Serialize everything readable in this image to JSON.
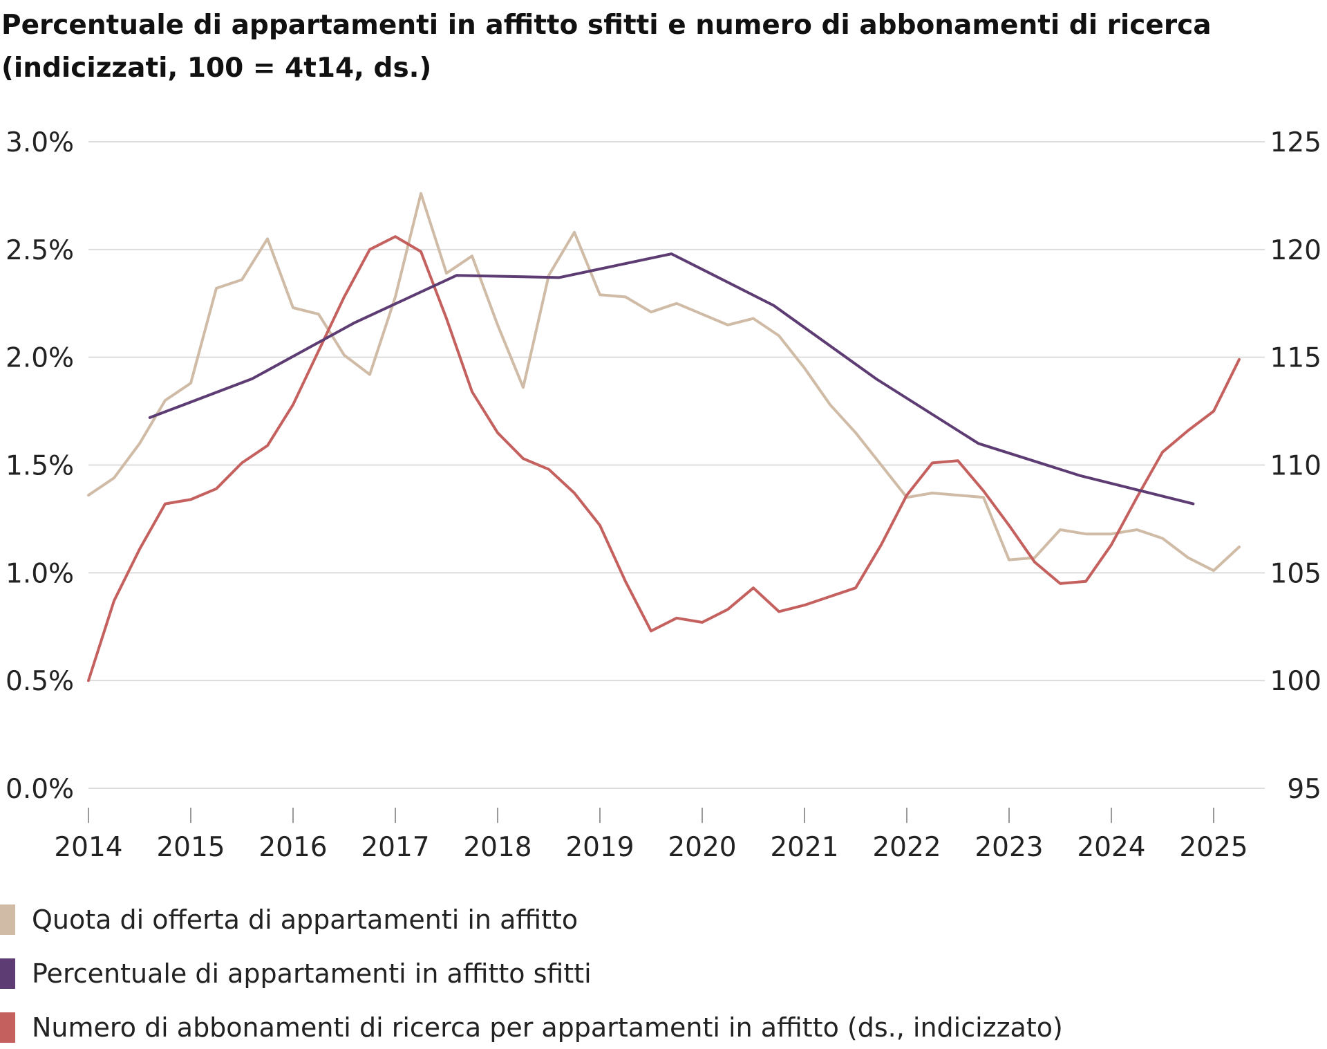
{
  "chart_data": {
    "type": "line",
    "title": "Percentuale di appartamenti in affitto sfitti e numero di abbonamenti di ricerca",
    "subtitle": "(indicizzati, 100 = 4t14, ds.)",
    "x_ticks": [
      "2014",
      "2015",
      "2016",
      "2017",
      "2018",
      "2019",
      "2020",
      "2021",
      "2022",
      "2023",
      "2024",
      "2025"
    ],
    "y_left": {
      "ticks": [
        "0.0%",
        "0.5%",
        "1.0%",
        "1.5%",
        "2.0%",
        "2.5%",
        "3.0%"
      ],
      "range": [
        0,
        3
      ]
    },
    "y_right": {
      "ticks": [
        "95",
        "100",
        "105",
        "110",
        "115",
        "120",
        "125"
      ],
      "range": [
        95,
        125
      ]
    },
    "grid": true,
    "legend_position": "bottom",
    "series": [
      {
        "name": "Quota di offerta di appartamenti in affitto",
        "axis": "left",
        "color": "#cfbba6",
        "points": [
          [
            2014.0,
            1.36
          ],
          [
            2014.25,
            1.44
          ],
          [
            2014.5,
            1.6
          ],
          [
            2014.75,
            1.8
          ],
          [
            2015.0,
            1.88
          ],
          [
            2015.25,
            2.32
          ],
          [
            2015.5,
            2.36
          ],
          [
            2015.75,
            2.55
          ],
          [
            2016.0,
            2.23
          ],
          [
            2016.25,
            2.2
          ],
          [
            2016.5,
            2.01
          ],
          [
            2016.75,
            1.92
          ],
          [
            2017.0,
            2.28
          ],
          [
            2017.25,
            2.76
          ],
          [
            2017.5,
            2.39
          ],
          [
            2017.75,
            2.47
          ],
          [
            2018.0,
            2.15
          ],
          [
            2018.25,
            1.86
          ],
          [
            2018.5,
            2.38
          ],
          [
            2018.75,
            2.58
          ],
          [
            2019.0,
            2.29
          ],
          [
            2019.25,
            2.28
          ],
          [
            2019.5,
            2.21
          ],
          [
            2019.75,
            2.25
          ],
          [
            2020.0,
            2.2
          ],
          [
            2020.25,
            2.15
          ],
          [
            2020.5,
            2.18
          ],
          [
            2020.75,
            2.1
          ],
          [
            2021.0,
            1.95
          ],
          [
            2021.25,
            1.78
          ],
          [
            2021.5,
            1.65
          ],
          [
            2021.75,
            1.5
          ],
          [
            2022.0,
            1.35
          ],
          [
            2022.25,
            1.37
          ],
          [
            2022.5,
            1.36
          ],
          [
            2022.75,
            1.35
          ],
          [
            2023.0,
            1.06
          ],
          [
            2023.25,
            1.07
          ],
          [
            2023.5,
            1.2
          ],
          [
            2023.75,
            1.18
          ],
          [
            2024.0,
            1.18
          ],
          [
            2024.25,
            1.2
          ],
          [
            2024.5,
            1.16
          ],
          [
            2024.75,
            1.07
          ],
          [
            2025.0,
            1.01
          ],
          [
            2025.25,
            1.12
          ]
        ]
      },
      {
        "name": "Percentuale di appartamenti in affitto sfitti",
        "axis": "left",
        "color": "#5c3c72",
        "points": [
          [
            2014.6,
            1.72
          ],
          [
            2015.6,
            1.9
          ],
          [
            2016.6,
            2.16
          ],
          [
            2017.6,
            2.38
          ],
          [
            2018.6,
            2.37
          ],
          [
            2019.7,
            2.48
          ],
          [
            2020.7,
            2.24
          ],
          [
            2021.7,
            1.9
          ],
          [
            2022.7,
            1.6
          ],
          [
            2023.7,
            1.45
          ],
          [
            2024.8,
            1.32
          ]
        ]
      },
      {
        "name": "Numero di abbonamenti di ricerca per appartamenti in affitto (ds., indicizzato)",
        "axis": "right",
        "color": "#c4605e",
        "points": [
          [
            2014.0,
            100.0
          ],
          [
            2014.25,
            103.7
          ],
          [
            2014.5,
            106.1
          ],
          [
            2014.75,
            108.2
          ],
          [
            2015.0,
            108.4
          ],
          [
            2015.25,
            108.9
          ],
          [
            2015.5,
            110.1
          ],
          [
            2015.75,
            110.9
          ],
          [
            2016.0,
            112.8
          ],
          [
            2016.25,
            115.3
          ],
          [
            2016.5,
            117.8
          ],
          [
            2016.75,
            120.0
          ],
          [
            2017.0,
            120.6
          ],
          [
            2017.25,
            119.9
          ],
          [
            2017.5,
            116.8
          ],
          [
            2017.75,
            113.4
          ],
          [
            2018.0,
            111.5
          ],
          [
            2018.25,
            110.3
          ],
          [
            2018.5,
            109.8
          ],
          [
            2018.75,
            108.7
          ],
          [
            2019.0,
            107.2
          ],
          [
            2019.25,
            104.6
          ],
          [
            2019.5,
            102.3
          ],
          [
            2019.75,
            102.9
          ],
          [
            2020.0,
            102.7
          ],
          [
            2020.25,
            103.3
          ],
          [
            2020.5,
            104.3
          ],
          [
            2020.75,
            103.2
          ],
          [
            2021.0,
            103.5
          ],
          [
            2021.25,
            103.9
          ],
          [
            2021.5,
            104.3
          ],
          [
            2021.75,
            106.3
          ],
          [
            2022.0,
            108.6
          ],
          [
            2022.25,
            110.1
          ],
          [
            2022.5,
            110.2
          ],
          [
            2022.75,
            108.8
          ],
          [
            2023.0,
            107.2
          ],
          [
            2023.25,
            105.5
          ],
          [
            2023.5,
            104.5
          ],
          [
            2023.75,
            104.6
          ],
          [
            2024.0,
            106.3
          ],
          [
            2024.25,
            108.5
          ],
          [
            2024.5,
            110.6
          ],
          [
            2024.75,
            111.6
          ],
          [
            2025.0,
            112.5
          ],
          [
            2025.25,
            114.9
          ]
        ]
      }
    ]
  }
}
